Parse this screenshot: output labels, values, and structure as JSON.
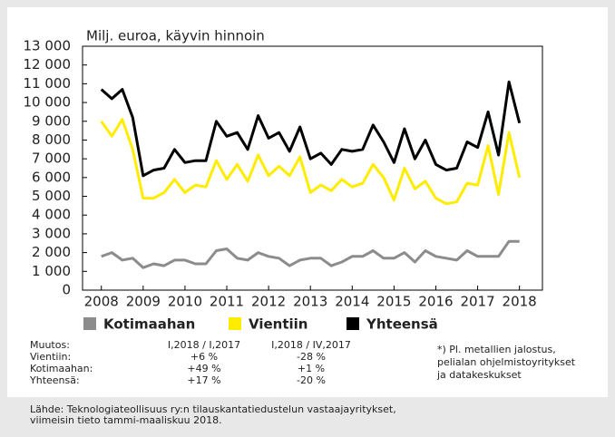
{
  "chart_data": {
    "type": "line",
    "title": "Milj. euroa, käyvin hinnoin",
    "x": [
      2008,
      2008.25,
      2008.5,
      2008.75,
      2009,
      2009.25,
      2009.5,
      2009.75,
      2010,
      2010.25,
      2010.5,
      2010.75,
      2011,
      2011.25,
      2011.5,
      2011.75,
      2012,
      2012.25,
      2012.5,
      2012.75,
      2013,
      2013.25,
      2013.5,
      2013.75,
      2014,
      2014.25,
      2014.5,
      2014.75,
      2015,
      2015.25,
      2015.5,
      2015.75,
      2016,
      2016.25,
      2016.5,
      2016.75,
      2017,
      2017.25,
      2017.5,
      2017.75,
      2018
    ],
    "xlim": [
      2007.55,
      2018.55
    ],
    "xticks": [
      2008,
      2009,
      2010,
      2011,
      2012,
      2013,
      2014,
      2015,
      2016,
      2017,
      2018
    ],
    "ylim": [
      0,
      13000
    ],
    "yticks": [
      0,
      {
        "value": 1000,
        "label": "1 000"
      },
      {
        "value": 2000,
        "label": "2 000"
      },
      {
        "value": 3000,
        "label": "3 000"
      },
      {
        "value": 4000,
        "label": "4 000"
      },
      {
        "value": 5000,
        "label": "5 000"
      },
      {
        "value": 6000,
        "label": "6 000"
      },
      {
        "value": 7000,
        "label": "7 000"
      },
      {
        "value": 8000,
        "label": "8 000"
      },
      {
        "value": 9000,
        "label": "9 000"
      },
      {
        "value": 10000,
        "label": "10 000"
      },
      {
        "value": 11000,
        "label": "11 000"
      },
      {
        "value": 12000,
        "label": "12 000"
      },
      {
        "value": 13000,
        "label": "13 000"
      }
    ],
    "series": [
      {
        "name": "Kotimaahan",
        "color": "#8c8c8c",
        "values": [
          1800,
          2000,
          1600,
          1700,
          1200,
          1400,
          1300,
          1600,
          1600,
          1400,
          1400,
          2100,
          2200,
          1700,
          1600,
          2000,
          1800,
          1700,
          1300,
          1600,
          1700,
          1700,
          1300,
          1500,
          1800,
          1800,
          2100,
          1700,
          1700,
          2000,
          1500,
          2100,
          1800,
          1700,
          1600,
          2100,
          1800,
          1800,
          1800,
          2600,
          2600
        ]
      },
      {
        "name": "Vientiin",
        "color": "#ffec00",
        "values": [
          9000,
          8200,
          9100,
          7500,
          4900,
          4900,
          5200,
          5900,
          5200,
          5600,
          5500,
          6900,
          5900,
          6700,
          5800,
          7200,
          6100,
          6600,
          6100,
          7100,
          5200,
          5600,
          5300,
          5900,
          5500,
          5700,
          6700,
          6000,
          4800,
          6500,
          5400,
          5800,
          4900,
          4600,
          4700,
          5700,
          5600,
          7700,
          5100,
          8400,
          6000
        ]
      },
      {
        "name": "Yhteensä",
        "color": "#000000",
        "values": [
          10700,
          10200,
          10700,
          9200,
          6100,
          6400,
          6500,
          7500,
          6800,
          6900,
          6900,
          9000,
          8200,
          8400,
          7500,
          9300,
          8100,
          8400,
          7400,
          8700,
          7000,
          7300,
          6700,
          7500,
          7400,
          7500,
          8800,
          7900,
          6800,
          8600,
          7000,
          8000,
          6700,
          6400,
          6500,
          7900,
          7600,
          9500,
          7200,
          11100,
          8900
        ]
      }
    ],
    "table": {
      "header": [
        "Muutos:",
        "I,2018 / I,2017",
        "I,2018 / IV,2017"
      ],
      "rows": [
        [
          "Vientiin:",
          "+6 %",
          "-28 %"
        ],
        [
          "Kotimaahan:",
          "+49 %",
          "+1 %"
        ],
        [
          "Yhteensä:",
          "+17 %",
          "-20 %"
        ]
      ]
    },
    "note": [
      "*) Pl. metallien jalostus,",
      "pelialan ohjelmistoyritykset",
      "ja datakeskukset"
    ],
    "source": [
      "Lähde: Teknologiateollisuus ry:n tilauskantatiedustelun vastaajayritykset,",
      "viimeisin tieto tammi-maaliskuu 2018."
    ]
  }
}
